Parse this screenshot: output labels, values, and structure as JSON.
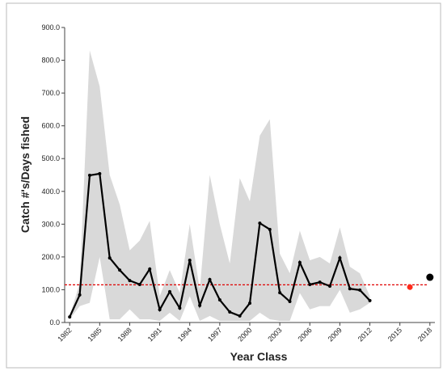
{
  "chart_data": {
    "type": "line",
    "y_label": "Catch #'s/Days fished",
    "x_label": "Year Class",
    "x": [
      1982,
      1983,
      1984,
      1985,
      1986,
      1987,
      1988,
      1989,
      1990,
      1991,
      1992,
      1993,
      1994,
      1995,
      1996,
      1997,
      1998,
      1999,
      2000,
      2001,
      2002,
      2003,
      2004,
      2005,
      2006,
      2007,
      2008,
      2009,
      2010,
      2011,
      2012
    ],
    "values": [
      17,
      84,
      449,
      454,
      197,
      160,
      128,
      116,
      163,
      39,
      94,
      44,
      190,
      52,
      131,
      69,
      32,
      20,
      59,
      303,
      284,
      91,
      64,
      183,
      116,
      123,
      111,
      197,
      103,
      99,
      67
    ],
    "color": "#000000",
    "band_upper": [
      20,
      120,
      830,
      720,
      450,
      360,
      220,
      250,
      310,
      80,
      160,
      90,
      300,
      100,
      450,
      300,
      180,
      440,
      370,
      570,
      620,
      210,
      150,
      280,
      190,
      200,
      180,
      290,
      170,
      150,
      80
    ],
    "band_lower": [
      10,
      50,
      60,
      200,
      10,
      10,
      40,
      10,
      10,
      5,
      30,
      5,
      80,
      5,
      20,
      5,
      5,
      5,
      5,
      30,
      10,
      5,
      5,
      90,
      40,
      50,
      50,
      100,
      30,
      40,
      60
    ],
    "band_color": "#d9d9d9",
    "reference_line": 115,
    "reference_color": "#e00000",
    "points": [
      {
        "x": 2016,
        "value": 108,
        "color": "#ff2a1a"
      },
      {
        "x": 2018,
        "value": 138,
        "color": "#000000"
      }
    ],
    "xlim": [
      1981.5,
      2018.5
    ],
    "xticks": [
      1982,
      1985,
      1988,
      1991,
      1994,
      1997,
      2000,
      2003,
      2006,
      2009,
      2012,
      2015,
      2018
    ],
    "ylim": [
      0,
      900
    ],
    "yticks": [
      {
        "value": 0,
        "label": "0.0"
      },
      {
        "value": 100,
        "label": "100.0"
      },
      {
        "value": 200,
        "label": "200.0"
      },
      {
        "value": 300,
        "label": "300.0"
      },
      {
        "value": 400,
        "label": "400.0"
      },
      {
        "value": 500,
        "label": "500.0"
      },
      {
        "value": 600,
        "label": "600.0"
      },
      {
        "value": 700,
        "label": "700.0"
      },
      {
        "value": 800,
        "label": "800.0"
      },
      {
        "value": 900,
        "label": "900.0"
      }
    ]
  }
}
